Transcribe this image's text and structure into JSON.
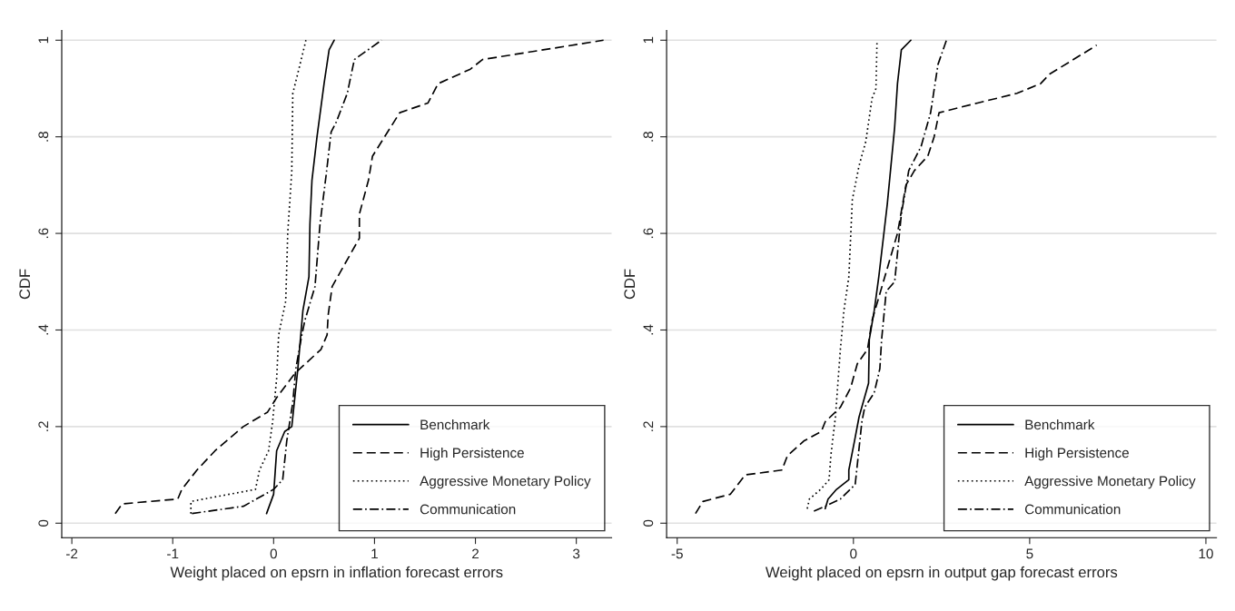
{
  "chart_data": [
    {
      "type": "line",
      "xlabel": "Weight placed on epsrn in inflation forecast errors",
      "ylabel": "CDF",
      "xlim": [
        -2.1,
        3.35
      ],
      "ylim": [
        -0.03,
        1.02
      ],
      "xticks": [
        -2,
        -1,
        0,
        1,
        2,
        3
      ],
      "yticks": [
        0,
        {
          "value": 0.2,
          "label": ".2"
        },
        {
          "value": 0.4,
          "label": ".4"
        },
        {
          "value": 0.6,
          "label": ".6"
        },
        {
          "value": 0.8,
          "label": ".8"
        },
        1
      ],
      "grid": "y",
      "legend": "bottom right",
      "series": [
        {
          "name": "Benchmark",
          "color": "#000000",
          "line_style": "solid",
          "x": [
            -0.07,
            0,
            0.03,
            0.11,
            0.18,
            0.21,
            0.24,
            0.29,
            0.35,
            0.36,
            0.38,
            0.43,
            0.5,
            0.55,
            0.6
          ],
          "values": [
            0.02,
            0.06,
            0.15,
            0.19,
            0.2,
            0.26,
            0.32,
            0.44,
            0.51,
            0.62,
            0.71,
            0.8,
            0.91,
            0.98,
            1.0
          ]
        },
        {
          "name": "High Persistence",
          "color": "#000000",
          "line_style": "dashed",
          "x": [
            -1.57,
            -1.5,
            -0.95,
            -0.91,
            -0.76,
            -0.58,
            -0.3,
            -0.06,
            0.03,
            0.21,
            0.47,
            0.53,
            0.54,
            0.58,
            0.85,
            0.85,
            0.94,
            0.98,
            1.25,
            1.53,
            1.63,
            1.95,
            2.07,
            3.27
          ],
          "values": [
            0.02,
            0.04,
            0.05,
            0.07,
            0.11,
            0.15,
            0.2,
            0.23,
            0.26,
            0.31,
            0.36,
            0.39,
            0.43,
            0.49,
            0.59,
            0.64,
            0.71,
            0.76,
            0.85,
            0.87,
            0.91,
            0.94,
            0.96,
            1.0
          ]
        },
        {
          "name": "Aggressive Monetary Policy",
          "color": "#000000",
          "line_style": "dotted",
          "x": [
            -0.82,
            -0.82,
            -0.18,
            -0.14,
            -0.05,
            -0.01,
            0.03,
            0.05,
            0.12,
            0.14,
            0.18,
            0.19,
            0.25,
            0.32
          ],
          "values": [
            0.02,
            0.045,
            0.07,
            0.11,
            0.15,
            0.21,
            0.3,
            0.39,
            0.46,
            0.6,
            0.73,
            0.89,
            0.94,
            1.0
          ]
        },
        {
          "name": "Communication",
          "color": "#000000",
          "line_style": "dashdot",
          "x": [
            -0.81,
            -0.3,
            0,
            0.09,
            0.13,
            0.19,
            0.22,
            0.28,
            0.31,
            0.41,
            0.46,
            0.52,
            0.57,
            0.62,
            0.73,
            0.8,
            1.07
          ],
          "values": [
            0.02,
            0.035,
            0.07,
            0.09,
            0.17,
            0.25,
            0.32,
            0.39,
            0.42,
            0.49,
            0.62,
            0.72,
            0.81,
            0.83,
            0.89,
            0.96,
            1.0
          ]
        }
      ]
    },
    {
      "type": "line",
      "xlabel": "Weight placed on epsrn in output gap forecast errors",
      "ylabel": "CDF",
      "xlim": [
        -5.3,
        10.3
      ],
      "ylim": [
        -0.03,
        1.02
      ],
      "xticks": [
        -5,
        0,
        5,
        10
      ],
      "yticks": [
        0,
        {
          "value": 0.2,
          "label": ".2"
        },
        {
          "value": 0.4,
          "label": ".4"
        },
        {
          "value": 0.6,
          "label": ".6"
        },
        {
          "value": 0.8,
          "label": ".8"
        },
        1
      ],
      "grid": "y",
      "legend": "bottom right",
      "series": [
        {
          "name": "Benchmark",
          "color": "#000000",
          "line_style": "solid",
          "x": [
            -0.8,
            -0.72,
            -0.48,
            -0.13,
            -0.13,
            0.03,
            0.16,
            0.43,
            0.45,
            0.59,
            0.72,
            0.96,
            1.17,
            1.25,
            1.36,
            1.63
          ],
          "values": [
            0.03,
            0.05,
            0.07,
            0.09,
            0.11,
            0.17,
            0.22,
            0.29,
            0.38,
            0.44,
            0.51,
            0.66,
            0.82,
            0.91,
            0.98,
            1.0
          ]
        },
        {
          "name": "High Persistence",
          "color": "#000000",
          "line_style": "dashed",
          "x": [
            -4.48,
            -4.27,
            -3.49,
            -3.07,
            -2.03,
            -1.87,
            -1.41,
            -0.91,
            -0.8,
            -0.37,
            -0.08,
            0.11,
            0.4,
            0.53,
            1.25,
            1.49,
            1.73,
            2.11,
            2.29,
            2.43,
            3.52,
            4.64,
            5.31,
            5.57,
            6.8,
            6.9
          ],
          "values": [
            0.02,
            0.045,
            0.06,
            0.1,
            0.11,
            0.14,
            0.17,
            0.19,
            0.21,
            0.24,
            0.28,
            0.33,
            0.36,
            0.42,
            0.6,
            0.7,
            0.73,
            0.76,
            0.8,
            0.85,
            0.87,
            0.89,
            0.91,
            0.93,
            0.985,
            0.99
          ]
        },
        {
          "name": "Aggressive Monetary Policy",
          "color": "#000000",
          "line_style": "dotted",
          "x": [
            -1.31,
            -1.25,
            -0.93,
            -0.69,
            -0.64,
            -0.51,
            -0.37,
            -0.27,
            -0.13,
            -0.03,
            0.16,
            0.35,
            0.53,
            0.64,
            0.67
          ],
          "values": [
            0.03,
            0.05,
            0.07,
            0.09,
            0.14,
            0.22,
            0.36,
            0.44,
            0.51,
            0.67,
            0.74,
            0.79,
            0.88,
            0.9,
            1.0
          ]
        },
        {
          "name": "Communication",
          "color": "#000000",
          "line_style": "dashdot",
          "x": [
            -1.12,
            -0.8,
            -0.37,
            0.05,
            0.24,
            0.32,
            0.59,
            0.75,
            0.8,
            0.93,
            1.17,
            1.36,
            1.57,
            1.92,
            2.19,
            2.4,
            2.64
          ],
          "values": [
            0.025,
            0.035,
            0.05,
            0.08,
            0.21,
            0.24,
            0.27,
            0.32,
            0.38,
            0.48,
            0.5,
            0.64,
            0.73,
            0.78,
            0.85,
            0.95,
            1.0
          ]
        }
      ]
    }
  ]
}
